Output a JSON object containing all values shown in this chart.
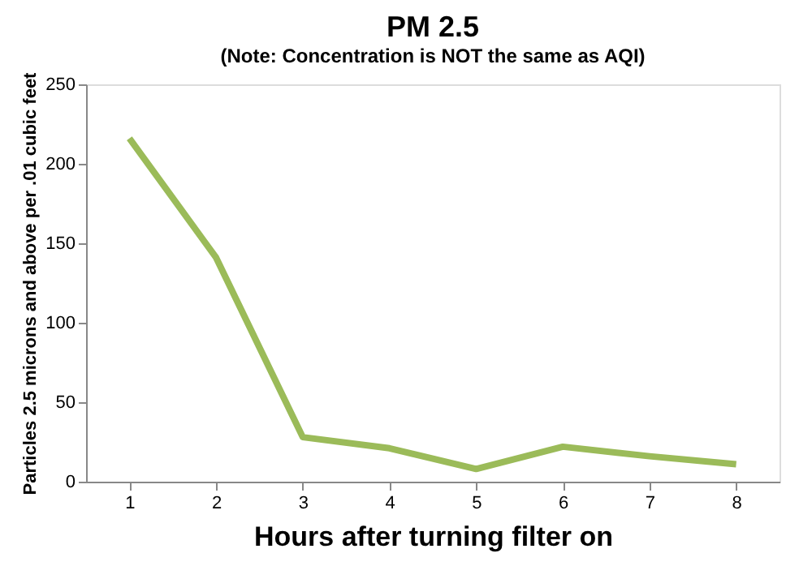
{
  "chart_data": {
    "type": "line",
    "title": "PM 2.5",
    "subtitle": "(Note: Concentration is NOT the same as AQI)",
    "xlabel": "Hours after turning filter on",
    "ylabel": "Particles 2.5 microns and above per .01 cubic feet",
    "categories": [
      "1",
      "2",
      "3",
      "4",
      "5",
      "6",
      "7",
      "8"
    ],
    "series": [
      {
        "color": "#9bbb59",
        "values": [
          216,
          141,
          28,
          21,
          8,
          22,
          16,
          11
        ]
      }
    ],
    "ylim": [
      0,
      250
    ],
    "yticks": [
      0,
      50,
      100,
      150,
      200,
      250
    ],
    "grid": false,
    "marker": "none",
    "line_style": "solid"
  }
}
